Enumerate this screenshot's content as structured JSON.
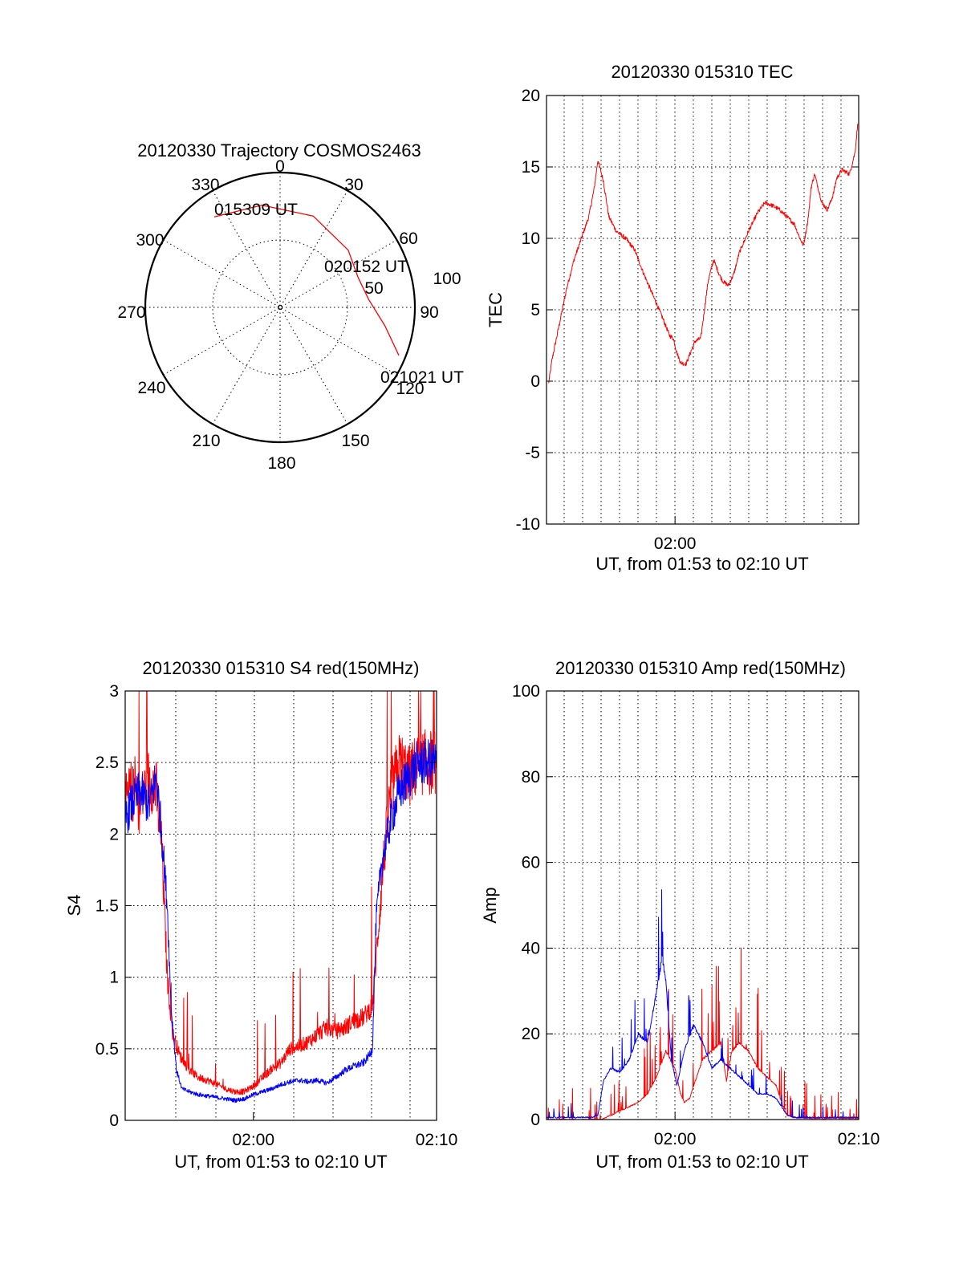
{
  "chart_data": [
    {
      "type": "polar-trajectory",
      "title": "20120330 Trajectory COSMOS2463",
      "azimuth_labels": [
        "0",
        "30",
        "60",
        "90",
        "120",
        "150",
        "180",
        "210",
        "240",
        "270",
        "300",
        "330"
      ],
      "ring_labels": [
        "50",
        "100"
      ],
      "annotations": [
        {
          "text": "015309 UT",
          "az": 324,
          "zenith": 83
        },
        {
          "text": "020152 UT",
          "az": 69,
          "zenith": 62
        },
        {
          "text": "021021 UT",
          "az": 112,
          "zenith": 95
        }
      ],
      "track": {
        "color": "#ff0000",
        "points": [
          [
            324,
            83
          ],
          [
            350,
            77
          ],
          [
            20,
            72
          ],
          [
            50,
            66
          ],
          [
            69,
            62
          ],
          [
            85,
            66
          ],
          [
            100,
            79
          ],
          [
            112,
            95
          ]
        ]
      }
    },
    {
      "type": "line",
      "title": "20120330 015310 TEC",
      "xlabel": "UT, from 01:53 to 02:10 UT",
      "ylabel": "TEC",
      "xlim": [
        1.5,
        18.5
      ],
      "ylim": [
        -10,
        20
      ],
      "yticks": [
        -10,
        -5,
        0,
        5,
        10,
        15,
        20
      ],
      "xticks": [
        {
          "x": 8.5,
          "label": "02:00"
        }
      ],
      "series": [
        {
          "name": "TEC",
          "color": "#ff0000",
          "noise": 0.15,
          "x": [
            1.6,
            1.8,
            2.2,
            2.6,
            3.0,
            3.4,
            3.8,
            4.1,
            4.3,
            4.6,
            4.9,
            5.3,
            5.8,
            6.3,
            6.8,
            7.3,
            7.8,
            8.2,
            8.4,
            8.6,
            8.8,
            9.1,
            9.4,
            9.6,
            9.9,
            10.1,
            10.3,
            10.6,
            10.9,
            11.1,
            11.4,
            11.7,
            12.0,
            12.5,
            13.0,
            13.4,
            13.8,
            14.2,
            14.6,
            15.0,
            15.3,
            15.5,
            15.7,
            15.8,
            15.9,
            16.1,
            16.4,
            16.5,
            16.8,
            17.1,
            17.3,
            17.6,
            18.0,
            18.3,
            18.45
          ],
          "y": [
            -0.3,
            1.5,
            4.0,
            6.5,
            8.5,
            10.0,
            11.5,
            13.5,
            15.5,
            14.0,
            11.5,
            10.5,
            10.0,
            9.2,
            7.5,
            6.0,
            4.5,
            3.2,
            3.0,
            2.0,
            1.3,
            1.2,
            2.2,
            2.8,
            3.0,
            5.0,
            7.0,
            8.5,
            7.5,
            7.0,
            6.7,
            7.5,
            9.0,
            10.5,
            11.8,
            12.5,
            12.3,
            12.0,
            11.5,
            11.0,
            10.0,
            9.5,
            11.0,
            12.0,
            13.5,
            14.5,
            13.0,
            12.5,
            12.0,
            13.0,
            14.2,
            14.8,
            14.5,
            16.0,
            18.0
          ]
        }
      ]
    },
    {
      "type": "line",
      "title": "20120330 015310 S4 red(150MHz)",
      "xlabel": "UT, from 01:53 to 02:10 UT",
      "ylabel": "S4",
      "xlim": [
        1.5,
        18.5
      ],
      "ylim": [
        0,
        3
      ],
      "yticks": [
        0,
        0.5,
        1,
        1.5,
        2,
        2.5,
        3
      ],
      "xticks": [
        {
          "x": 8.5,
          "label": "02:00"
        },
        {
          "x": 18.5,
          "label": "02:10"
        }
      ],
      "series": [
        {
          "name": "red",
          "color": "#ff0000",
          "noise": 0.07,
          "spike_prob": 0.04,
          "spike_height": 0.9,
          "x": [
            1.5,
            1.8,
            2.3,
            2.8,
            3.2,
            3.5,
            3.8,
            4.1,
            4.5,
            5.0,
            5.5,
            6.0,
            6.5,
            7.0,
            7.5,
            8.0,
            8.5,
            9.0,
            9.5,
            10.0,
            10.5,
            11.0,
            11.5,
            12.0,
            12.5,
            13.0,
            13.5,
            14.0,
            14.5,
            15.0,
            15.3,
            15.6,
            16.0,
            16.5,
            17.0,
            17.5,
            18.0,
            18.5
          ],
          "y": [
            2.2,
            2.3,
            2.2,
            2.4,
            2.3,
            1.9,
            1.0,
            0.6,
            0.45,
            0.35,
            0.3,
            0.28,
            0.25,
            0.22,
            0.2,
            0.2,
            0.24,
            0.3,
            0.36,
            0.4,
            0.5,
            0.52,
            0.55,
            0.6,
            0.65,
            0.62,
            0.65,
            0.7,
            0.72,
            0.8,
            1.3,
            1.8,
            2.3,
            2.5,
            2.4,
            2.5,
            2.5,
            2.5
          ]
        },
        {
          "name": "blue",
          "color": "#0000ff",
          "noise": 0.05,
          "x": [
            1.5,
            1.8,
            2.3,
            2.8,
            3.2,
            3.5,
            3.8,
            4.0,
            4.3,
            4.6,
            5.0,
            5.5,
            6.0,
            6.5,
            7.0,
            7.5,
            8.0,
            8.5,
            9.0,
            9.5,
            10.0,
            10.5,
            11.0,
            11.5,
            12.0,
            12.5,
            13.0,
            13.5,
            14.0,
            14.5,
            14.8,
            15.0,
            15.2,
            15.5,
            16.0,
            16.5,
            17.0,
            17.5,
            18.0,
            18.5
          ],
          "y": [
            2.1,
            2.2,
            2.3,
            2.2,
            2.4,
            2.0,
            1.5,
            0.8,
            0.35,
            0.22,
            0.2,
            0.18,
            0.17,
            0.16,
            0.15,
            0.14,
            0.15,
            0.18,
            0.2,
            0.22,
            0.25,
            0.27,
            0.28,
            0.27,
            0.28,
            0.26,
            0.3,
            0.35,
            0.38,
            0.4,
            0.45,
            0.5,
            1.4,
            1.8,
            2.1,
            2.3,
            2.4,
            2.5,
            2.5,
            2.5
          ]
        }
      ]
    },
    {
      "type": "line",
      "title": "20120330 015310 Amp red(150MHz)",
      "xlabel": "UT, from 01:53 to 02:10 UT",
      "ylabel": "Amp",
      "xlim": [
        1.5,
        18.5
      ],
      "ylim": [
        0,
        100
      ],
      "yticks": [
        0,
        20,
        40,
        60,
        80,
        100
      ],
      "xticks": [
        {
          "x": 8.5,
          "label": "02:00"
        },
        {
          "x": 18.5,
          "label": "02:10"
        }
      ],
      "series": [
        {
          "name": "red",
          "color": "#ff0000",
          "noise": 0.5,
          "spike_prob": 0.06,
          "spike_height": 28,
          "x": [
            1.5,
            4.5,
            5.0,
            5.5,
            6.0,
            6.5,
            7.0,
            7.5,
            8.0,
            8.5,
            8.8,
            9.0,
            9.3,
            9.6,
            10.0,
            10.5,
            11.0,
            11.3,
            11.6,
            12.0,
            12.5,
            13.0,
            13.5,
            14.0,
            14.3,
            14.6,
            15.0,
            16.0,
            17.0,
            18.5
          ],
          "y": [
            0,
            0,
            1,
            2,
            3,
            4,
            6,
            10,
            16,
            12,
            6,
            4,
            5,
            9,
            14,
            16,
            18,
            9,
            16,
            18,
            16,
            12,
            10,
            8,
            4,
            1,
            0.5,
            0.3,
            0.3,
            0.3
          ]
        },
        {
          "name": "blue",
          "color": "#0000ff",
          "noise": 0.5,
          "spike_prob": 0.05,
          "spike_height": 12,
          "x": [
            1.5,
            4.0,
            4.3,
            4.6,
            5.0,
            5.5,
            6.0,
            6.5,
            7.0,
            7.5,
            7.8,
            8.0,
            8.3,
            8.6,
            9.0,
            9.5,
            10.0,
            10.5,
            11.0,
            11.5,
            12.0,
            12.5,
            13.0,
            13.5,
            14.0,
            14.3,
            14.6,
            15.0,
            16.0,
            18.5
          ],
          "y": [
            0.5,
            0.5,
            1,
            9,
            12,
            11,
            14,
            20,
            18,
            30,
            38,
            32,
            14,
            8,
            16,
            22,
            18,
            12,
            14,
            12,
            10,
            8,
            6,
            6,
            5,
            3,
            1,
            0.5,
            0.5,
            0.5
          ]
        }
      ]
    }
  ]
}
